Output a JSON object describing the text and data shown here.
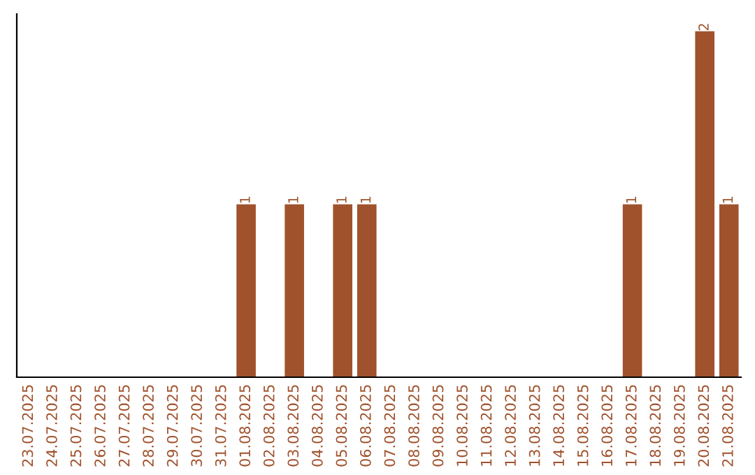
{
  "chart_data": {
    "type": "bar",
    "categories": [
      "23.07.2025",
      "24.07.2025",
      "25.07.2025",
      "26.07.2025",
      "27.07.2025",
      "28.07.2025",
      "29.07.2025",
      "30.07.2025",
      "31.07.2025",
      "01.08.2025",
      "02.08.2025",
      "03.08.2025",
      "04.08.2025",
      "05.08.2025",
      "06.08.2025",
      "07.08.2025",
      "08.08.2025",
      "09.08.2025",
      "10.08.2025",
      "11.08.2025",
      "12.08.2025",
      "13.08.2025",
      "14.08.2025",
      "15.08.2025",
      "16.08.2025",
      "17.08.2025",
      "18.08.2025",
      "19.08.2025",
      "20.08.2025",
      "21.08.2025"
    ],
    "values": [
      0,
      0,
      0,
      0,
      0,
      0,
      0,
      0,
      0,
      1,
      0,
      1,
      0,
      1,
      1,
      0,
      0,
      0,
      0,
      0,
      0,
      0,
      0,
      0,
      0,
      1,
      0,
      0,
      2,
      1
    ],
    "value_labels": [
      null,
      null,
      null,
      null,
      null,
      null,
      null,
      null,
      null,
      "1",
      null,
      "1",
      null,
      "1",
      "1",
      null,
      null,
      null,
      null,
      null,
      null,
      null,
      null,
      null,
      null,
      "1",
      null,
      null,
      "2",
      "1"
    ],
    "color": "#a0522d",
    "tick_labels": "x"
  }
}
